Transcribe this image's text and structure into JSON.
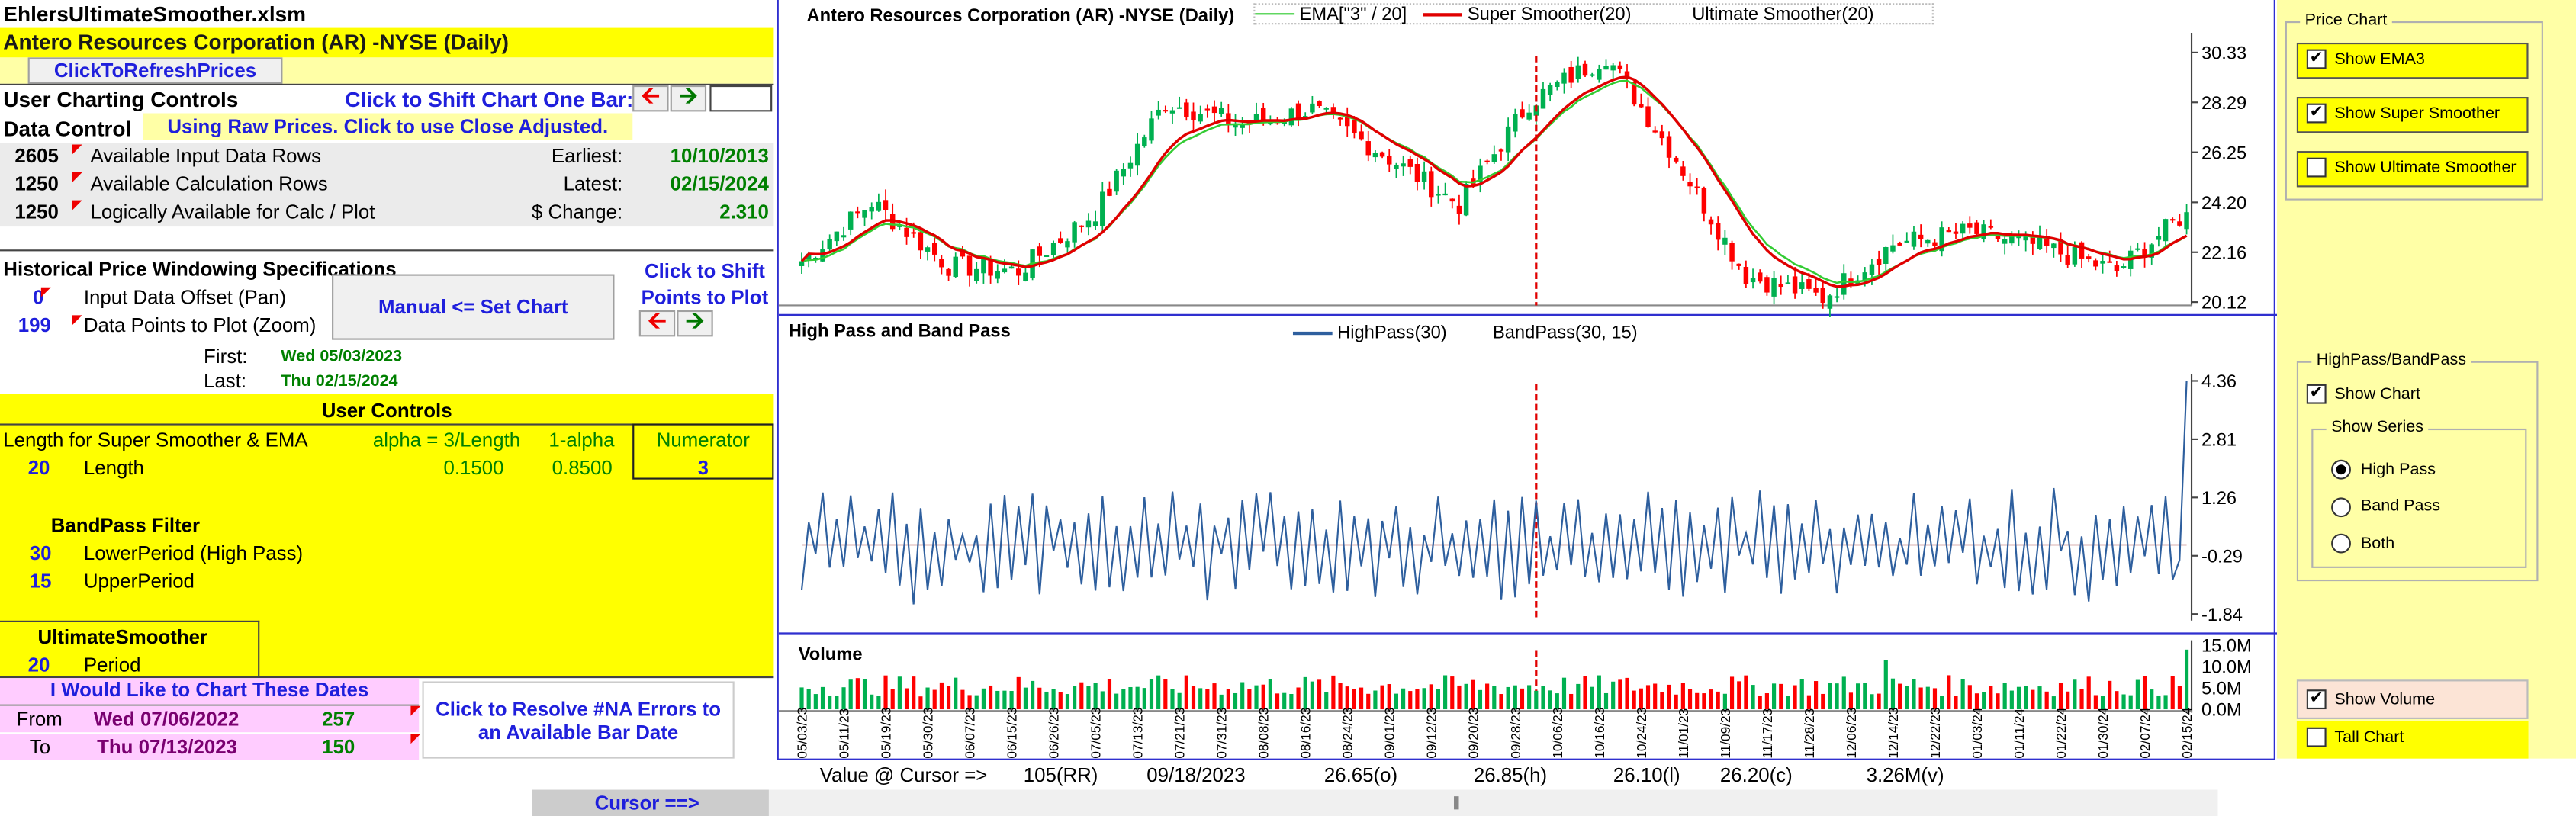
{
  "sheet": {
    "filename": "EhlersUltimateSmoother.xlsm",
    "title": "Antero Resources Corporation (AR) -NYSE  (Daily)",
    "refresh_button": "ClickToRefreshPrices",
    "user_charting_controls": "User Charting Controls",
    "shift_label": "Click to Shift Chart One Bar:",
    "data_control": "Data Control",
    "raw_prices_button": "Using Raw Prices. Click to use Close Adjusted.",
    "stats": [
      {
        "num": "2605",
        "label": "Available Input Data Rows",
        "rlabel": "Earliest:",
        "rval": "10/10/2013"
      },
      {
        "num": "1250",
        "label": "Available Calculation Rows",
        "rlabel": "Latest:",
        "rval": "02/15/2024"
      },
      {
        "num": "1250",
        "label": "Logically Available for Calc / Plot",
        "rlabel": "$ Change:",
        "rval": "2.310"
      }
    ],
    "hist_title": "Historical Price Windowing Specifications",
    "offset_num": "0",
    "offset_label": "Input Data Offset (Pan)",
    "points_num": "199",
    "points_label": "Data Points to Plot (Zoom)",
    "set_chart_button": "Manual <= Set Chart",
    "shift_points": "Click to Shift Points to Plot",
    "first_label": "First:",
    "first_val": "Wed 05/03/2023",
    "last_label": "Last:",
    "last_val": "Thu 02/15/2024",
    "user_controls": "User Controls",
    "length_desc": "Length for Super Smoother & EMA",
    "alpha_label": "alpha = 3/Length",
    "oneminus_label": "1-alpha",
    "numerator_label": "Numerator",
    "length_num": "20",
    "length_label": "Length",
    "alpha_val": "0.1500",
    "oneminus_val": "0.8500",
    "numerator_val": "3",
    "bandpass_title": "BandPass Filter",
    "lower_num": "30",
    "lower_label": "LowerPeriod (High Pass)",
    "upper_num": "15",
    "upper_label": "UpperPeriod",
    "ultimate_title": "UltimateSmoother",
    "period_num": "20",
    "period_label": "Period",
    "dates_title": "I Would Like to Chart These Dates",
    "from_label": "From",
    "from_date": "Wed 07/06/2022",
    "from_num": "257",
    "to_label": "To",
    "to_date": "Thu 07/13/2023",
    "to_num": "150",
    "resolve_button": "Click to Resolve #NA Errors to an Available Bar Date",
    "cursor_label": "Cursor ==>",
    "value_cursor": [
      "Value @ Cursor =>",
      "105(RR)",
      "09/18/2023",
      "26.65(o)",
      "26.85(h)",
      "26.10(l)",
      "26.20(c)",
      "3.26M(v)"
    ]
  },
  "panel": {
    "price_chart": {
      "title": "Price Chart",
      "items": [
        {
          "label": "Show EMA3",
          "checked": true
        },
        {
          "label": "Show Super Smoother",
          "checked": true
        },
        {
          "label": "Show Ultimate Smoother",
          "checked": false
        }
      ]
    },
    "hp": {
      "title": "HighPass/BandPass",
      "show_chart": "Show Chart",
      "show_series": "Show Series",
      "options": [
        {
          "label": "High Pass",
          "selected": true
        },
        {
          "label": "Band Pass",
          "selected": false
        },
        {
          "label": "Both",
          "selected": false
        }
      ]
    },
    "volume": {
      "show_volume": "Show Volume",
      "tall_chart": "Tall Chart"
    }
  },
  "chart_data": [
    {
      "type": "candlestick",
      "title": "Antero Resources Corporation (AR) -NYSE  (Daily)",
      "legend": [
        "EMA[\"3\" / 20]",
        "Super Smoother(20)",
        "Ultimate Smoother(20)"
      ],
      "y_ticks": [
        "30.33",
        "28.29",
        "26.25",
        "24.20",
        "22.16",
        "20.12"
      ],
      "ylim": [
        20.12,
        30.33
      ],
      "cursor_date": "09/18/2023",
      "colors": {
        "up": "#00b050",
        "down": "#ff0000",
        "ema": "#33cc33",
        "super": "#e00000"
      },
      "key_closes": [
        {
          "date": "05/03/23",
          "close": 21.8
        },
        {
          "date": "05/19/23",
          "close": 24.2
        },
        {
          "date": "05/30/23",
          "close": 21.6
        },
        {
          "date": "06/15/23",
          "close": 21.4
        },
        {
          "date": "07/13/23",
          "close": 23.8
        },
        {
          "date": "08/08/23",
          "close": 28.3
        },
        {
          "date": "08/23/23",
          "close": 27.4
        },
        {
          "date": "09/01/23",
          "close": 28.0
        },
        {
          "date": "09/18/23",
          "close": 26.2
        },
        {
          "date": "10/06/23",
          "close": 24.1
        },
        {
          "date": "10/24/23",
          "close": 28.3
        },
        {
          "date": "11/01/23",
          "close": 30.2
        },
        {
          "date": "11/17/23",
          "close": 26.0
        },
        {
          "date": "12/06/23",
          "close": 21.2
        },
        {
          "date": "12/14/23",
          "close": 20.3
        },
        {
          "date": "12/22/23",
          "close": 22.5
        },
        {
          "date": "01/12/24",
          "close": 23.0
        },
        {
          "date": "01/30/24",
          "close": 22.4
        },
        {
          "date": "02/07/24",
          "close": 21.4
        },
        {
          "date": "02/15/24",
          "close": 23.8
        }
      ]
    },
    {
      "type": "line",
      "title": "High Pass and Band Pass",
      "legend": [
        "HighPass(30)",
        "BandPass(30, 15)"
      ],
      "y_ticks": [
        "4.36",
        "2.81",
        "1.26",
        "-0.29",
        "-1.84"
      ],
      "ylim": [
        -1.84,
        4.36
      ],
      "last_value": 4.36
    },
    {
      "type": "bar",
      "title": "Volume",
      "y_ticks": [
        "15.0M",
        "10.0M",
        "5.0M",
        "0.0M"
      ],
      "ylim": [
        0,
        15
      ],
      "x_dates": [
        "05/03/23",
        "05/11/23",
        "05/19/23",
        "05/30/23",
        "06/07/23",
        "06/15/23",
        "06/26/23",
        "07/05/23",
        "07/13/23",
        "07/21/23",
        "07/31/23",
        "08/08/23",
        "08/16/23",
        "08/24/23",
        "09/01/23",
        "09/12/23",
        "09/20/23",
        "09/28/23",
        "10/06/23",
        "10/16/23",
        "10/24/23",
        "11/01/23",
        "11/09/23",
        "11/17/23",
        "11/28/23",
        "12/06/23",
        "12/14/23",
        "12/22/23",
        "01/03/24",
        "01/11/24",
        "01/22/24",
        "01/30/24",
        "02/07/24",
        "02/15/24"
      ]
    }
  ]
}
